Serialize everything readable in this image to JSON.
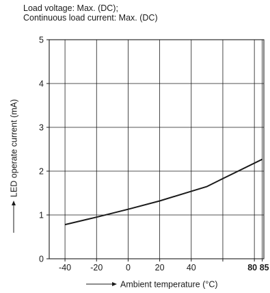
{
  "header": {
    "line1": "Load voltage: Max. (DC);",
    "line2": "Continuous load current: Max. (DC)"
  },
  "chart_data": {
    "type": "line",
    "title": "",
    "xlabel": "Ambient temperature (°C)",
    "ylabel": "LED operate current (mA)",
    "xlim": [
      -50,
      86
    ],
    "ylim": [
      0,
      5
    ],
    "x_ticks": [
      -40,
      -20,
      0,
      20,
      40,
      60,
      80,
      85
    ],
    "x_tick_labels": [
      "-40",
      "-20",
      "0",
      "20",
      "40",
      "",
      "80",
      "85"
    ],
    "y_ticks": [
      0,
      1,
      2,
      3,
      4,
      5
    ],
    "y_tick_labels": [
      "0",
      "1",
      "2",
      "3",
      "4",
      "5"
    ],
    "grid": true,
    "series": [
      {
        "x": [
          -40,
          -20,
          0,
          20,
          40,
          50,
          60,
          85
        ],
        "y": [
          0.78,
          0.95,
          1.13,
          1.32,
          1.54,
          1.65,
          1.83,
          2.27
        ]
      }
    ]
  }
}
